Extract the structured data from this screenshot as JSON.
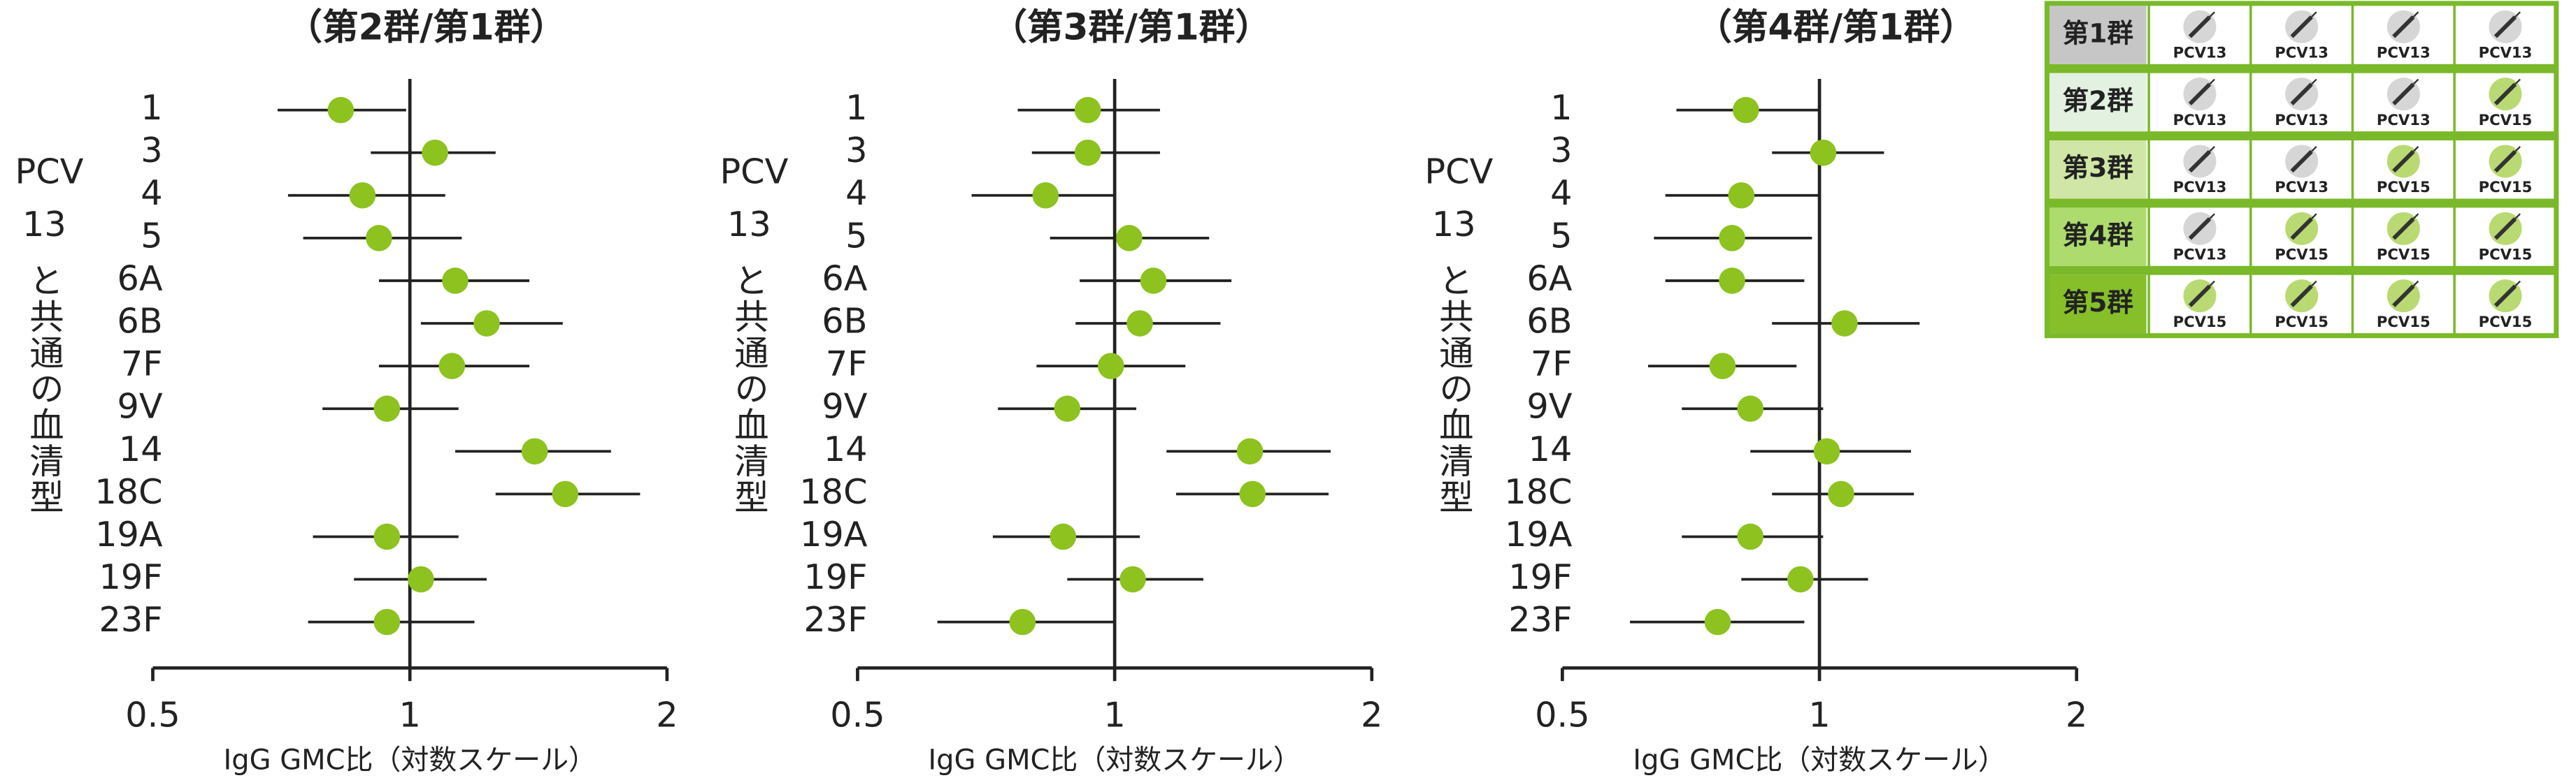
{
  "chart_data": [
    {
      "type": "forest",
      "title": "（第2群/第1群）",
      "y_label": [
        "PCV",
        "13",
        "と共通の血清型"
      ],
      "x_label": "IgG GMC比（対数スケール）",
      "categories": [
        "1",
        "3",
        "4",
        "5",
        "6A",
        "6B",
        "7F",
        "9V",
        "14",
        "18C",
        "19A",
        "19F",
        "23F"
      ],
      "values": [
        0.83,
        1.07,
        0.88,
        0.92,
        1.13,
        1.23,
        1.12,
        0.94,
        1.4,
        1.52,
        0.94,
        1.03,
        0.94
      ],
      "ci_low": [
        0.7,
        0.9,
        0.72,
        0.75,
        0.92,
        1.03,
        0.92,
        0.79,
        1.13,
        1.26,
        0.77,
        0.86,
        0.76
      ],
      "ci_high": [
        0.99,
        1.26,
        1.1,
        1.15,
        1.38,
        1.51,
        1.38,
        1.14,
        1.72,
        1.86,
        1.14,
        1.23,
        1.19
      ],
      "color": "#8dc21f",
      "xlim": [
        0.5,
        2
      ],
      "xticks": [
        0.5,
        1,
        2
      ],
      "log_scale": true,
      "reference_line": 1
    },
    {
      "type": "forest",
      "title": "（第3群/第1群）",
      "y_label": [
        "PCV",
        "13",
        "と共通の血清型"
      ],
      "x_label": "IgG GMC比（対数スケール）",
      "categories": [
        "1",
        "3",
        "4",
        "5",
        "6A",
        "6B",
        "7F",
        "9V",
        "14",
        "18C",
        "19A",
        "19F",
        "23F"
      ],
      "values": [
        0.93,
        0.93,
        0.83,
        1.04,
        1.11,
        1.07,
        0.99,
        0.88,
        1.44,
        1.45,
        0.87,
        1.05,
        0.78
      ],
      "ci_low": [
        0.77,
        0.8,
        0.68,
        0.84,
        0.91,
        0.9,
        0.81,
        0.73,
        1.15,
        1.18,
        0.72,
        0.88,
        0.62
      ],
      "ci_high": [
        1.13,
        1.13,
        1.0,
        1.29,
        1.37,
        1.33,
        1.21,
        1.06,
        1.79,
        1.78,
        1.07,
        1.27,
        1.0
      ],
      "color": "#8dc21f",
      "xlim": [
        0.5,
        2
      ],
      "xticks": [
        0.5,
        1,
        2
      ],
      "log_scale": true,
      "reference_line": 1
    },
    {
      "type": "forest",
      "title": "（第4群/第1群）",
      "y_label": [
        "PCV",
        "13",
        "と共通の血清型"
      ],
      "x_label": "IgG GMC比（対数スケール）",
      "categories": [
        "1",
        "3",
        "4",
        "5",
        "6A",
        "6B",
        "7F",
        "9V",
        "14",
        "18C",
        "19A",
        "19F",
        "23F"
      ],
      "values": [
        0.82,
        1.01,
        0.81,
        0.79,
        0.79,
        1.07,
        0.77,
        0.83,
        1.02,
        1.06,
        0.83,
        0.95,
        0.76
      ],
      "ci_low": [
        0.68,
        0.88,
        0.66,
        0.64,
        0.66,
        0.88,
        0.63,
        0.69,
        0.83,
        0.88,
        0.69,
        0.81,
        0.6
      ],
      "ci_high": [
        1.0,
        1.19,
        1.0,
        0.98,
        0.96,
        1.31,
        0.94,
        1.01,
        1.28,
        1.29,
        1.01,
        1.14,
        0.96
      ],
      "color": "#8dc21f",
      "xlim": [
        0.5,
        2
      ],
      "xticks": [
        0.5,
        1,
        2
      ],
      "log_scale": true,
      "reference_line": 1
    }
  ],
  "legend_table": {
    "border_color": "#7ab929",
    "vaccine_colors": {
      "PCV13": "#d6d6d6",
      "PCV15": "#b9da72"
    },
    "rows": [
      {
        "label": "第1群",
        "color": "#c6c6c6",
        "vaccines": [
          "PCV13",
          "PCV13",
          "PCV13",
          "PCV13"
        ]
      },
      {
        "label": "第2群",
        "color": "#e2f1e0",
        "vaccines": [
          "PCV13",
          "PCV13",
          "PCV13",
          "PCV15"
        ]
      },
      {
        "label": "第3群",
        "color": "#d0e6a6",
        "vaccines": [
          "PCV13",
          "PCV13",
          "PCV15",
          "PCV15"
        ]
      },
      {
        "label": "第4群",
        "color": "#addb6e",
        "vaccines": [
          "PCV13",
          "PCV15",
          "PCV15",
          "PCV15"
        ]
      },
      {
        "label": "第5群",
        "color": "#86bf2a",
        "vaccines": [
          "PCV15",
          "PCV15",
          "PCV15",
          "PCV15"
        ]
      }
    ]
  }
}
